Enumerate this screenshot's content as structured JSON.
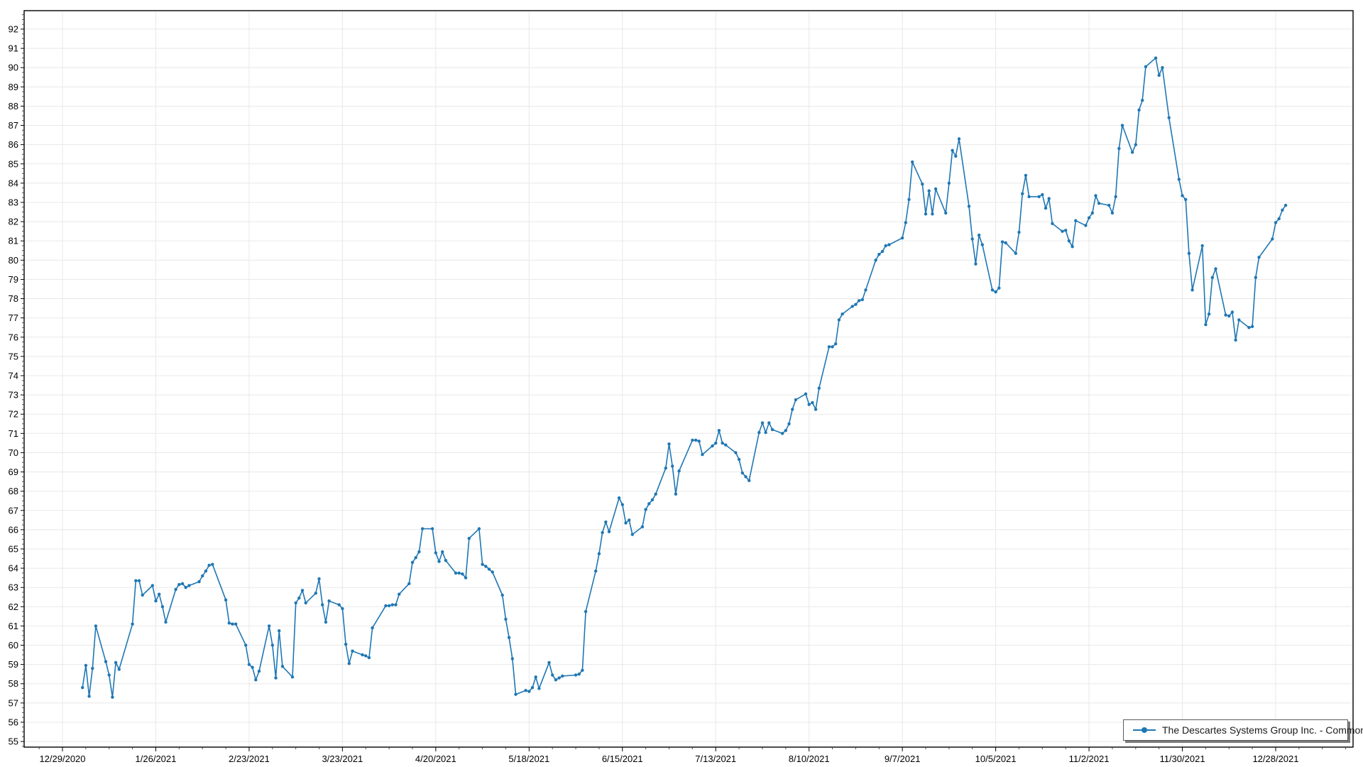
{
  "page": {
    "background": "#ffffff"
  },
  "chart_data": {
    "type": "line",
    "title": "",
    "legend": {
      "position": "bottom-right",
      "label": "The Descartes Systems Group Inc. - Common Stock"
    },
    "series_color": "#1f77b4",
    "grid_color": "#e8e8e8",
    "axis_color": "#000000",
    "grid": "on",
    "xlabel": "",
    "ylabel": "",
    "ylim": [
      54.71,
      92.96
    ],
    "y_ticks": [
      55,
      56,
      57,
      58,
      59,
      60,
      61,
      62,
      63,
      64,
      65,
      66,
      67,
      68,
      69,
      70,
      71,
      72,
      73,
      74,
      75,
      76,
      77,
      78,
      79,
      80,
      81,
      82,
      83,
      84,
      85,
      86,
      87,
      88,
      89,
      90,
      91,
      92
    ],
    "x_ticks": [
      "12/29/2020",
      "1/26/2021",
      "2/23/2021",
      "3/23/2021",
      "4/20/2021",
      "5/18/2021",
      "6/15/2021",
      "7/13/2021",
      "8/10/2021",
      "9/7/2021",
      "10/5/2021",
      "11/2/2021",
      "11/30/2021",
      "12/28/2021"
    ],
    "series": [
      {
        "name": "The Descartes Systems Group Inc. - Common Stock",
        "points": [
          [
            "1/4/2021",
            57.8
          ],
          [
            "1/5/2021",
            58.95
          ],
          [
            "1/6/2021",
            57.35
          ],
          [
            "1/7/2021",
            58.8
          ],
          [
            "1/8/2021",
            61.0
          ],
          [
            "1/11/2021",
            59.15
          ],
          [
            "1/12/2021",
            58.45
          ],
          [
            "1/13/2021",
            57.3
          ],
          [
            "1/14/2021",
            59.1
          ],
          [
            "1/15/2021",
            58.75
          ],
          [
            "1/19/2021",
            61.1
          ],
          [
            "1/20/2021",
            63.35
          ],
          [
            "1/21/2021",
            63.35
          ],
          [
            "1/22/2021",
            62.6
          ],
          [
            "1/25/2021",
            63.1
          ],
          [
            "1/26/2021",
            62.3
          ],
          [
            "1/27/2021",
            62.65
          ],
          [
            "1/28/2021",
            62.0
          ],
          [
            "1/29/2021",
            61.2
          ],
          [
            "2/1/2021",
            62.9
          ],
          [
            "2/2/2021",
            63.15
          ],
          [
            "2/3/2021",
            63.2
          ],
          [
            "2/4/2021",
            63.0
          ],
          [
            "2/5/2021",
            63.1
          ],
          [
            "2/8/2021",
            63.3
          ],
          [
            "2/9/2021",
            63.6
          ],
          [
            "2/10/2021",
            63.85
          ],
          [
            "2/11/2021",
            64.15
          ],
          [
            "2/12/2021",
            64.2
          ],
          [
            "2/16/2021",
            62.35
          ],
          [
            "2/17/2021",
            61.15
          ],
          [
            "2/18/2021",
            61.1
          ],
          [
            "2/19/2021",
            61.1
          ],
          [
            "2/22/2021",
            60.0
          ],
          [
            "2/23/2021",
            59.0
          ],
          [
            "2/24/2021",
            58.85
          ],
          [
            "2/25/2021",
            58.2
          ],
          [
            "2/26/2021",
            58.65
          ],
          [
            "3/1/2021",
            61.0
          ],
          [
            "3/2/2021",
            60.0
          ],
          [
            "3/3/2021",
            58.3
          ],
          [
            "3/4/2021",
            60.75
          ],
          [
            "3/5/2021",
            58.9
          ],
          [
            "3/8/2021",
            58.35
          ],
          [
            "3/9/2021",
            62.2
          ],
          [
            "3/10/2021",
            62.45
          ],
          [
            "3/11/2021",
            62.85
          ],
          [
            "3/12/2021",
            62.2
          ],
          [
            "3/15/2021",
            62.7
          ],
          [
            "3/16/2021",
            63.45
          ],
          [
            "3/17/2021",
            62.1
          ],
          [
            "3/18/2021",
            61.2
          ],
          [
            "3/19/2021",
            62.3
          ],
          [
            "3/22/2021",
            62.1
          ],
          [
            "3/23/2021",
            61.9
          ],
          [
            "3/24/2021",
            60.05
          ],
          [
            "3/25/2021",
            59.05
          ],
          [
            "3/26/2021",
            59.7
          ],
          [
            "3/29/2021",
            59.5
          ],
          [
            "3/30/2021",
            59.45
          ],
          [
            "3/31/2021",
            59.35
          ],
          [
            "4/1/2021",
            60.9
          ],
          [
            "4/5/2021",
            62.05
          ],
          [
            "4/6/2021",
            62.05
          ],
          [
            "4/7/2021",
            62.1
          ],
          [
            "4/8/2021",
            62.1
          ],
          [
            "4/9/2021",
            62.65
          ],
          [
            "4/12/2021",
            63.2
          ],
          [
            "4/13/2021",
            64.3
          ],
          [
            "4/14/2021",
            64.55
          ],
          [
            "4/15/2021",
            64.85
          ],
          [
            "4/16/2021",
            66.05
          ],
          [
            "4/19/2021",
            66.05
          ],
          [
            "4/20/2021",
            64.8
          ],
          [
            "4/21/2021",
            64.35
          ],
          [
            "4/22/2021",
            64.85
          ],
          [
            "4/23/2021",
            64.4
          ],
          [
            "4/26/2021",
            63.75
          ],
          [
            "4/27/2021",
            63.75
          ],
          [
            "4/28/2021",
            63.7
          ],
          [
            "4/29/2021",
            63.5
          ],
          [
            "4/30/2021",
            65.55
          ],
          [
            "5/3/2021",
            66.05
          ],
          [
            "5/4/2021",
            64.2
          ],
          [
            "5/5/2021",
            64.1
          ],
          [
            "5/6/2021",
            63.95
          ],
          [
            "5/7/2021",
            63.8
          ],
          [
            "5/10/2021",
            62.6
          ],
          [
            "5/11/2021",
            61.35
          ],
          [
            "5/12/2021",
            60.4
          ],
          [
            "5/13/2021",
            59.3
          ],
          [
            "5/14/2021",
            57.45
          ],
          [
            "5/17/2021",
            57.65
          ],
          [
            "5/18/2021",
            57.6
          ],
          [
            "5/19/2021",
            57.8
          ],
          [
            "5/20/2021",
            58.35
          ],
          [
            "5/21/2021",
            57.75
          ],
          [
            "5/24/2021",
            59.1
          ],
          [
            "5/25/2021",
            58.45
          ],
          [
            "5/26/2021",
            58.2
          ],
          [
            "5/27/2021",
            58.3
          ],
          [
            "5/28/2021",
            58.4
          ],
          [
            "6/1/2021",
            58.45
          ],
          [
            "6/2/2021",
            58.5
          ],
          [
            "6/3/2021",
            58.7
          ],
          [
            "6/4/2021",
            61.75
          ],
          [
            "6/7/2021",
            63.85
          ],
          [
            "6/8/2021",
            64.75
          ],
          [
            "6/9/2021",
            65.85
          ],
          [
            "6/10/2021",
            66.4
          ],
          [
            "6/11/2021",
            65.9
          ],
          [
            "6/14/2021",
            67.65
          ],
          [
            "6/15/2021",
            67.3
          ],
          [
            "6/16/2021",
            66.35
          ],
          [
            "6/17/2021",
            66.5
          ],
          [
            "6/18/2021",
            65.75
          ],
          [
            "6/21/2021",
            66.15
          ],
          [
            "6/22/2021",
            67.05
          ],
          [
            "6/23/2021",
            67.35
          ],
          [
            "6/24/2021",
            67.55
          ],
          [
            "6/25/2021",
            67.85
          ],
          [
            "6/28/2021",
            69.2
          ],
          [
            "6/29/2021",
            70.45
          ],
          [
            "6/30/2021",
            69.3
          ],
          [
            "7/1/2021",
            67.85
          ],
          [
            "7/2/2021",
            69.05
          ],
          [
            "7/6/2021",
            70.65
          ],
          [
            "7/7/2021",
            70.65
          ],
          [
            "7/8/2021",
            70.6
          ],
          [
            "7/9/2021",
            69.9
          ],
          [
            "7/12/2021",
            70.35
          ],
          [
            "7/13/2021",
            70.5
          ],
          [
            "7/14/2021",
            71.15
          ],
          [
            "7/15/2021",
            70.5
          ],
          [
            "7/16/2021",
            70.4
          ],
          [
            "7/19/2021",
            70.0
          ],
          [
            "7/20/2021",
            69.65
          ],
          [
            "7/21/2021",
            68.95
          ],
          [
            "7/22/2021",
            68.75
          ],
          [
            "7/23/2021",
            68.55
          ],
          [
            "7/26/2021",
            71.05
          ],
          [
            "7/27/2021",
            71.55
          ],
          [
            "7/28/2021",
            71.05
          ],
          [
            "7/29/2021",
            71.55
          ],
          [
            "7/30/2021",
            71.2
          ],
          [
            "8/2/2021",
            71.0
          ],
          [
            "8/3/2021",
            71.15
          ],
          [
            "8/4/2021",
            71.5
          ],
          [
            "8/5/2021",
            72.25
          ],
          [
            "8/6/2021",
            72.75
          ],
          [
            "8/9/2021",
            73.05
          ],
          [
            "8/10/2021",
            72.5
          ],
          [
            "8/11/2021",
            72.6
          ],
          [
            "8/12/2021",
            72.25
          ],
          [
            "8/13/2021",
            73.35
          ],
          [
            "8/16/2021",
            75.5
          ],
          [
            "8/17/2021",
            75.5
          ],
          [
            "8/18/2021",
            75.65
          ],
          [
            "8/19/2021",
            76.9
          ],
          [
            "8/20/2021",
            77.2
          ],
          [
            "8/23/2021",
            77.6
          ],
          [
            "8/24/2021",
            77.7
          ],
          [
            "8/25/2021",
            77.9
          ],
          [
            "8/26/2021",
            77.95
          ],
          [
            "8/27/2021",
            78.45
          ],
          [
            "8/30/2021",
            80.0
          ],
          [
            "8/31/2021",
            80.3
          ],
          [
            "9/1/2021",
            80.45
          ],
          [
            "9/2/2021",
            80.75
          ],
          [
            "9/3/2021",
            80.8
          ],
          [
            "9/7/2021",
            81.15
          ],
          [
            "9/8/2021",
            81.95
          ],
          [
            "9/9/2021",
            83.15
          ],
          [
            "9/10/2021",
            85.1
          ],
          [
            "9/13/2021",
            83.95
          ],
          [
            "9/14/2021",
            82.4
          ],
          [
            "9/15/2021",
            83.6
          ],
          [
            "9/16/2021",
            82.4
          ],
          [
            "9/17/2021",
            83.7
          ],
          [
            "9/20/2021",
            82.45
          ],
          [
            "9/21/2021",
            84.0
          ],
          [
            "9/22/2021",
            85.7
          ],
          [
            "9/23/2021",
            85.4
          ],
          [
            "9/24/2021",
            86.3
          ],
          [
            "9/27/2021",
            82.8
          ],
          [
            "9/28/2021",
            81.1
          ],
          [
            "9/29/2021",
            79.8
          ],
          [
            "9/30/2021",
            81.3
          ],
          [
            "10/1/2021",
            80.8
          ],
          [
            "10/4/2021",
            78.45
          ],
          [
            "10/5/2021",
            78.35
          ],
          [
            "10/6/2021",
            78.55
          ],
          [
            "10/7/2021",
            80.95
          ],
          [
            "10/8/2021",
            80.9
          ],
          [
            "10/11/2021",
            80.35
          ],
          [
            "10/12/2021",
            81.45
          ],
          [
            "10/13/2021",
            83.45
          ],
          [
            "10/14/2021",
            84.4
          ],
          [
            "10/15/2021",
            83.3
          ],
          [
            "10/18/2021",
            83.3
          ],
          [
            "10/19/2021",
            83.4
          ],
          [
            "10/20/2021",
            82.7
          ],
          [
            "10/21/2021",
            83.2
          ],
          [
            "10/22/2021",
            81.9
          ],
          [
            "10/25/2021",
            81.5
          ],
          [
            "10/26/2021",
            81.55
          ],
          [
            "10/27/2021",
            81.0
          ],
          [
            "10/28/2021",
            80.7
          ],
          [
            "10/29/2021",
            82.05
          ],
          [
            "11/1/2021",
            81.8
          ],
          [
            "11/2/2021",
            82.2
          ],
          [
            "11/3/2021",
            82.45
          ],
          [
            "11/4/2021",
            83.35
          ],
          [
            "11/5/2021",
            82.95
          ],
          [
            "11/8/2021",
            82.85
          ],
          [
            "11/9/2021",
            82.45
          ],
          [
            "11/10/2021",
            83.3
          ],
          [
            "11/11/2021",
            85.8
          ],
          [
            "11/12/2021",
            87.0
          ],
          [
            "11/15/2021",
            85.6
          ],
          [
            "11/16/2021",
            86.0
          ],
          [
            "11/17/2021",
            87.8
          ],
          [
            "11/18/2021",
            88.3
          ],
          [
            "11/19/2021",
            90.05
          ],
          [
            "11/22/2021",
            90.5
          ],
          [
            "11/23/2021",
            89.6
          ],
          [
            "11/24/2021",
            90.0
          ],
          [
            "11/26/2021",
            87.4
          ],
          [
            "11/29/2021",
            84.2
          ],
          [
            "11/30/2021",
            83.35
          ],
          [
            "12/1/2021",
            83.15
          ],
          [
            "12/2/2021",
            80.35
          ],
          [
            "12/3/2021",
            78.45
          ],
          [
            "12/6/2021",
            80.75
          ],
          [
            "12/7/2021",
            76.65
          ],
          [
            "12/8/2021",
            77.2
          ],
          [
            "12/9/2021",
            79.1
          ],
          [
            "12/10/2021",
            79.55
          ],
          [
            "12/13/2021",
            77.15
          ],
          [
            "12/14/2021",
            77.1
          ],
          [
            "12/15/2021",
            77.3
          ],
          [
            "12/16/2021",
            75.85
          ],
          [
            "12/17/2021",
            76.9
          ],
          [
            "12/20/2021",
            76.5
          ],
          [
            "12/21/2021",
            76.55
          ],
          [
            "12/22/2021",
            79.1
          ],
          [
            "12/23/2021",
            80.15
          ],
          [
            "12/27/2021",
            81.1
          ],
          [
            "12/28/2021",
            81.95
          ],
          [
            "12/29/2021",
            82.15
          ],
          [
            "12/30/2021",
            82.6
          ],
          [
            "12/31/2021",
            82.85
          ]
        ]
      }
    ]
  }
}
